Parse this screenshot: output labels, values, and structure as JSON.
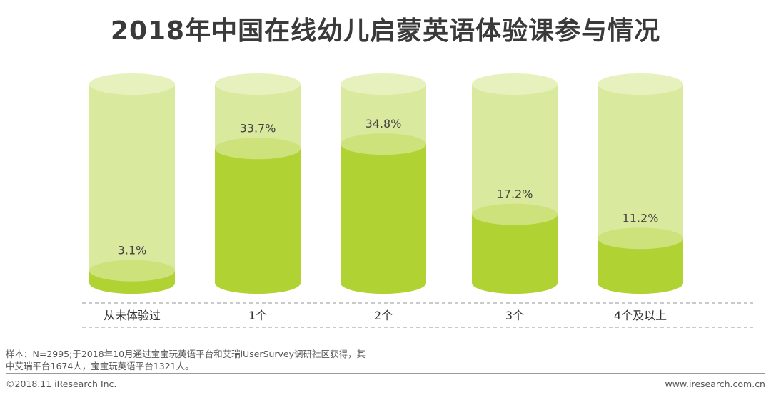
{
  "title": "2018年中国在线幼儿启蒙英语体验课参与情况",
  "chart_data": {
    "type": "bar",
    "title": "2018年中国在线幼儿启蒙英语体验课参与情况",
    "categories": [
      "从未体验过",
      "1个",
      "2个",
      "3个",
      "4个及以上"
    ],
    "values": [
      3.1,
      33.7,
      34.8,
      17.2,
      11.2
    ],
    "value_labels": [
      "3.1%",
      "33.7%",
      "34.8%",
      "17.2%",
      "11.2%"
    ],
    "unit": "%",
    "ylim": [
      0,
      100
    ],
    "style": "cylinder",
    "colors": {
      "fill": "#b1d233",
      "fill_top": "#cde27a",
      "background": "#d9e99d",
      "background_top": "#e7f1be",
      "separator": "#aaaaaa"
    }
  },
  "footer": {
    "note_line1": "样本：N=2995;于2018年10月通过宝宝玩英语平台和艾瑞iUserSurvey调研社区获得，其",
    "note_line2": "中艾瑞平台1674人，宝宝玩英语平台1321人。",
    "copyright": "©2018.11 iResearch Inc.",
    "website": "www.iresearch.com.cn"
  }
}
